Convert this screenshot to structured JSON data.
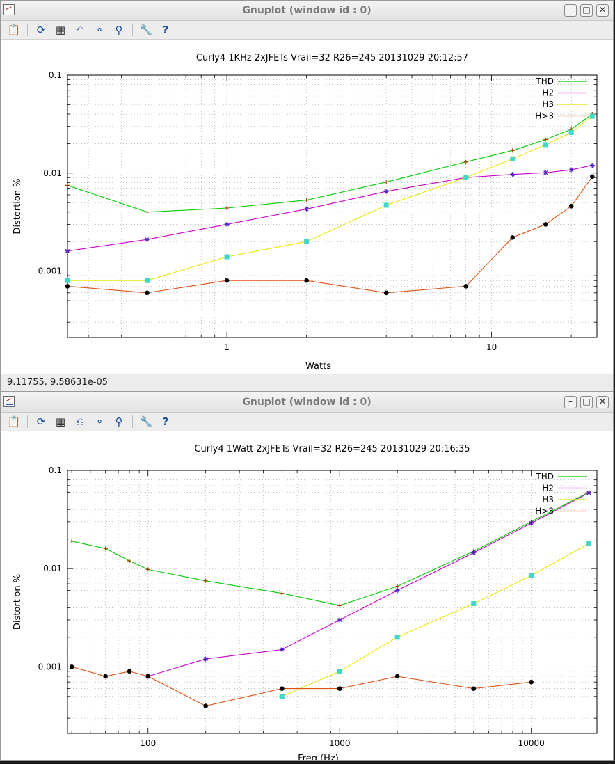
{
  "windows": [
    {
      "title": "Gnuplot (window id : 0)",
      "status": "9.11755,  9.58631e-05"
    },
    {
      "title": "Gnuplot (window id : 0)",
      "status": ""
    }
  ],
  "toolbar": {
    "buttons": [
      {
        "name": "export",
        "icon": "export-icon"
      },
      {
        "name": "replot",
        "icon": "replot-icon"
      },
      {
        "name": "grid",
        "icon": "grid-icon"
      },
      {
        "name": "previous-zoom",
        "icon": "zoom-previous-icon"
      },
      {
        "name": "next-zoom",
        "icon": "zoom-next-icon"
      },
      {
        "name": "autoscale",
        "icon": "autoscale-icon"
      },
      {
        "name": "settings",
        "icon": "settings-icon"
      },
      {
        "name": "help",
        "icon": "help-icon"
      }
    ]
  },
  "chart_data": [
    {
      "type": "line",
      "title": "Curly4 1KHz 2xJFETs Vrail=32 R26=245 20131029 20:12:57",
      "xlabel": "Watts",
      "ylabel": "Distortion %",
      "xscale": "log",
      "yscale": "log",
      "xlim": [
        0.25,
        25
      ],
      "ylim": [
        0.00021,
        0.1
      ],
      "grid": true,
      "legend_position": "top-right",
      "xticks": [
        {
          "value": 1,
          "label": "1"
        },
        {
          "value": 10,
          "label": "10"
        }
      ],
      "yticks": [
        {
          "value": 0.1,
          "label": "0.1"
        },
        {
          "value": 0.01,
          "label": "0.01"
        },
        {
          "value": 0.001,
          "label": "0.001"
        }
      ],
      "series": [
        {
          "name": "THD",
          "color": "#00cc00",
          "marker": "plus",
          "marker_color": "#a04000",
          "x": [
            0.25,
            0.5,
            1,
            2,
            4,
            8,
            12,
            16,
            20,
            24
          ],
          "y": [
            0.0075,
            0.004,
            0.0044,
            0.0053,
            0.0081,
            0.013,
            0.017,
            0.022,
            0.028,
            0.04
          ]
        },
        {
          "name": "H2",
          "color": "#cc00cc",
          "marker": "star",
          "marker_color": "#5020c0",
          "x": [
            0.25,
            0.5,
            1,
            2,
            4,
            8,
            12,
            16,
            20,
            24
          ],
          "y": [
            0.0016,
            0.0021,
            0.003,
            0.0043,
            0.0065,
            0.009,
            0.0097,
            0.0101,
            0.0108,
            0.012
          ]
        },
        {
          "name": "H3",
          "color": "#e8e800",
          "marker": "square",
          "marker_color": "#40d8c8",
          "x": [
            0.25,
            0.5,
            1,
            2,
            4,
            8,
            12,
            16,
            20,
            24
          ],
          "y": [
            0.0008,
            0.0008,
            0.0014,
            0.002,
            0.0047,
            0.009,
            0.014,
            0.0195,
            0.026,
            0.038
          ]
        },
        {
          "name": "H>3",
          "color": "#e05010",
          "marker": "dot",
          "marker_color": "#000000",
          "x": [
            0.25,
            0.5,
            1,
            2,
            4,
            8,
            12,
            16,
            20,
            24
          ],
          "y": [
            0.0007,
            0.0006,
            0.0008,
            0.0008,
            0.0006,
            0.0007,
            0.0022,
            0.003,
            0.0046,
            0.0092
          ]
        }
      ]
    },
    {
      "type": "line",
      "title": "Curly4 1Watt 2xJFETs Vrail=32 R26=245 20131029 20:16:35",
      "xlabel": "Freq (Hz)",
      "ylabel": "Distortion %",
      "xscale": "log",
      "yscale": "log",
      "xlim": [
        38,
        22000
      ],
      "ylim": [
        0.00021,
        0.1
      ],
      "grid": true,
      "legend_position": "top-right",
      "xticks": [
        {
          "value": 100,
          "label": "100"
        },
        {
          "value": 1000,
          "label": "1000"
        },
        {
          "value": 10000,
          "label": "10000"
        }
      ],
      "yticks": [
        {
          "value": 0.1,
          "label": "0.1"
        },
        {
          "value": 0.01,
          "label": "0.01"
        },
        {
          "value": 0.001,
          "label": "0.001"
        }
      ],
      "series": [
        {
          "name": "THD",
          "color": "#00cc00",
          "marker": "plus",
          "marker_color": "#a04000",
          "x": [
            40,
            60,
            80,
            100,
            200,
            500,
            1000,
            2000,
            5000,
            10000,
            20000
          ],
          "y": [
            0.019,
            0.016,
            0.012,
            0.0098,
            0.0075,
            0.0056,
            0.0042,
            0.0066,
            0.015,
            0.03,
            0.06
          ]
        },
        {
          "name": "H2",
          "color": "#cc00cc",
          "marker": "star",
          "marker_color": "#5020c0",
          "x": [
            100,
            200,
            500,
            1000,
            2000,
            5000,
            10000,
            20000
          ],
          "y": [
            0.0008,
            0.0012,
            0.0015,
            0.003,
            0.006,
            0.0145,
            0.029,
            0.059
          ]
        },
        {
          "name": "H3",
          "color": "#e8e800",
          "marker": "square",
          "marker_color": "#40d8c8",
          "x": [
            500,
            1000,
            2000,
            5000,
            10000,
            20000
          ],
          "y": [
            0.0005,
            0.0009,
            0.002,
            0.0044,
            0.0085,
            0.018
          ]
        },
        {
          "name": "H>3",
          "color": "#e05010",
          "marker": "dot",
          "marker_color": "#000000",
          "x": [
            40,
            60,
            80,
            100,
            200,
            500,
            1000,
            2000,
            5000,
            10000
          ],
          "y": [
            0.001,
            0.0008,
            0.0009,
            0.0008,
            0.0004,
            0.0006,
            0.0006,
            0.0008,
            0.0006,
            0.0007
          ]
        }
      ]
    }
  ]
}
